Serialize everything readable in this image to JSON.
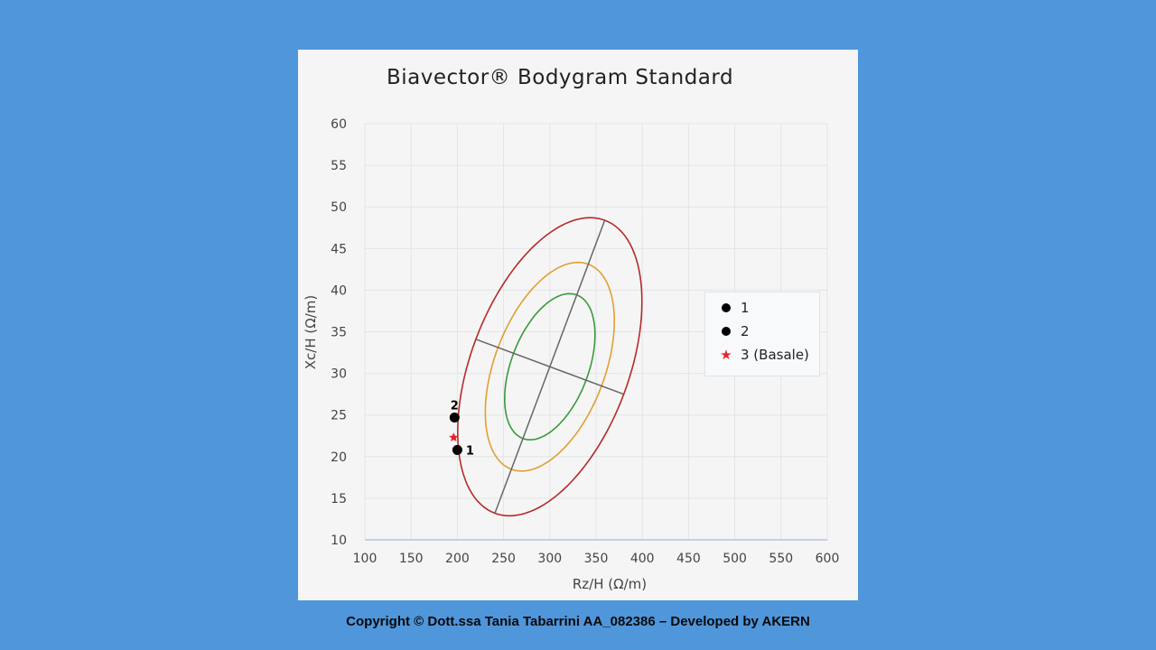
{
  "footer": "Copyright © Dott.ssa Tania Tabarrini AA_082386 – Developed by AKERN",
  "chart_data": {
    "type": "scatter",
    "title": "Biavector® Bodygram Standard",
    "xlabel": "Rz/H (Ω/m)",
    "ylabel": "Xc/H (Ω/m)",
    "xlim": [
      100,
      600
    ],
    "ylim": [
      10,
      60
    ],
    "xticks": [
      100,
      150,
      200,
      250,
      300,
      350,
      400,
      450,
      500,
      550,
      600
    ],
    "yticks": [
      10,
      15,
      20,
      25,
      30,
      35,
      40,
      45,
      50,
      55,
      60
    ],
    "grid": true,
    "legend_position": "right",
    "series": [
      {
        "name": "1",
        "label": "1",
        "marker": "circle",
        "color": "#000000",
        "points": [
          [
            200,
            20.8
          ]
        ]
      },
      {
        "name": "2",
        "label": "2",
        "marker": "circle",
        "color": "#000000",
        "points": [
          [
            197,
            24.7
          ]
        ]
      },
      {
        "name": "3 (Basale)",
        "label": "",
        "marker": "star",
        "color": "#e8232a",
        "points": [
          [
            196,
            22.3
          ]
        ]
      }
    ],
    "tolerance_ellipses": {
      "center": [
        300,
        30.8
      ],
      "major_semi_axis": [
        59.4,
        17.6
      ],
      "minor_semi_axis": [
        80,
        -3.3
      ],
      "levels": [
        {
          "scale": 0.49,
          "color": "#3a9a3a"
        },
        {
          "scale": 0.7,
          "color": "#e0a030"
        },
        {
          "scale": 1.0,
          "color": "#b52a2a"
        }
      ],
      "axis_color": "#666666"
    }
  }
}
